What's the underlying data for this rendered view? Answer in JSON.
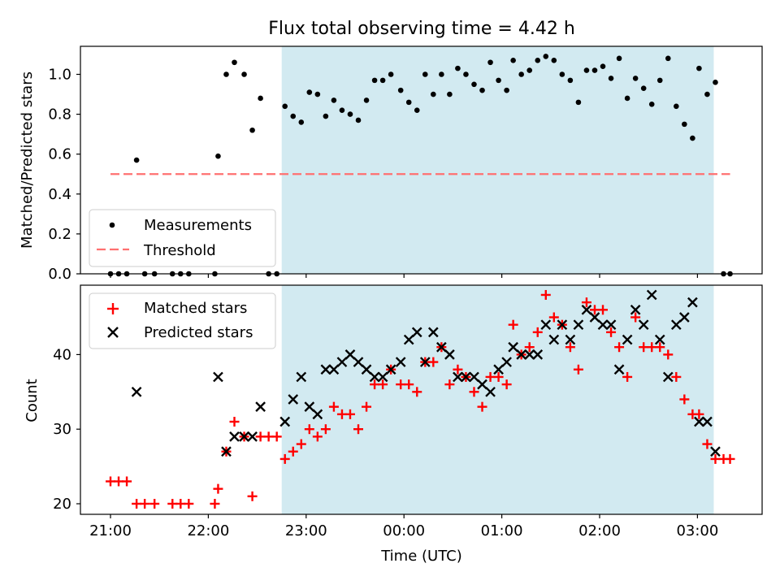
{
  "title": "Flux total observing time = 4.42 h",
  "xlabel": "Time (UTC)",
  "x_ticks": [
    "21:00",
    "22:00",
    "23:00",
    "00:00",
    "01:00",
    "02:00",
    "03:00"
  ],
  "shaded_interval": {
    "start": "22:45",
    "end": "03:10",
    "color": "#add8e6"
  },
  "chart_data": [
    {
      "type": "scatter",
      "panel": "top",
      "ylabel": "Matched/Predicted stars",
      "ylim": [
        0,
        1.14
      ],
      "y_ticks": [
        "0.0",
        "0.2",
        "0.4",
        "0.6",
        "0.8",
        "1.0"
      ],
      "legend_position": "lower-left",
      "threshold": {
        "name": "Threshold",
        "value": 0.5,
        "x_range": [
          "21:00",
          "03:20"
        ],
        "color": "#ff7070",
        "style": "dashed"
      },
      "series": [
        {
          "name": "Measurements",
          "color": "#000000",
          "marker": "dot",
          "points": [
            [
              "21:00",
              0
            ],
            [
              "21:05",
              0
            ],
            [
              "21:10",
              0
            ],
            [
              "21:16",
              0.57
            ],
            [
              "21:21",
              0
            ],
            [
              "21:27",
              0
            ],
            [
              "21:38",
              0
            ],
            [
              "21:43",
              0
            ],
            [
              "21:48",
              0
            ],
            [
              "22:04",
              0
            ],
            [
              "22:06",
              0.59
            ],
            [
              "22:11",
              1.0
            ],
            [
              "22:16",
              1.06
            ],
            [
              "22:22",
              1.0
            ],
            [
              "22:27",
              0.72
            ],
            [
              "22:32",
              0.88
            ],
            [
              "22:37",
              0
            ],
            [
              "22:42",
              0
            ],
            [
              "22:47",
              0.84
            ],
            [
              "22:52",
              0.79
            ],
            [
              "22:57",
              0.76
            ],
            [
              "23:02",
              0.91
            ],
            [
              "23:07",
              0.9
            ],
            [
              "23:12",
              0.79
            ],
            [
              "23:17",
              0.87
            ],
            [
              "23:22",
              0.82
            ],
            [
              "23:27",
              0.8
            ],
            [
              "23:32",
              0.77
            ],
            [
              "23:37",
              0.87
            ],
            [
              "23:42",
              0.97
            ],
            [
              "23:47",
              0.97
            ],
            [
              "23:52",
              1.0
            ],
            [
              "23:58",
              0.92
            ],
            [
              "00:03",
              0.86
            ],
            [
              "00:08",
              0.82
            ],
            [
              "00:13",
              1.0
            ],
            [
              "00:18",
              0.9
            ],
            [
              "00:23",
              1.0
            ],
            [
              "00:28",
              0.9
            ],
            [
              "00:33",
              1.03
            ],
            [
              "00:38",
              1.0
            ],
            [
              "00:43",
              0.95
            ],
            [
              "00:48",
              0.92
            ],
            [
              "00:53",
              1.06
            ],
            [
              "00:58",
              0.97
            ],
            [
              "01:03",
              0.92
            ],
            [
              "01:07",
              1.07
            ],
            [
              "01:12",
              1.0
            ],
            [
              "01:17",
              1.02
            ],
            [
              "01:22",
              1.07
            ],
            [
              "01:27",
              1.09
            ],
            [
              "01:32",
              1.07
            ],
            [
              "01:37",
              1.0
            ],
            [
              "01:42",
              0.97
            ],
            [
              "01:47",
              0.86
            ],
            [
              "01:52",
              1.02
            ],
            [
              "01:57",
              1.02
            ],
            [
              "02:02",
              1.04
            ],
            [
              "02:07",
              0.98
            ],
            [
              "02:12",
              1.08
            ],
            [
              "02:17",
              0.88
            ],
            [
              "02:22",
              0.98
            ],
            [
              "02:27",
              0.93
            ],
            [
              "02:32",
              0.85
            ],
            [
              "02:37",
              0.97
            ],
            [
              "02:42",
              1.08
            ],
            [
              "02:47",
              0.84
            ],
            [
              "02:52",
              0.75
            ],
            [
              "02:57",
              0.68
            ],
            [
              "03:01",
              1.03
            ],
            [
              "03:06",
              0.9
            ],
            [
              "03:11",
              0.96
            ],
            [
              "03:16",
              0
            ],
            [
              "03:20",
              0
            ]
          ]
        }
      ]
    },
    {
      "type": "scatter",
      "panel": "bottom",
      "ylabel": "Count",
      "ylim": [
        18.5,
        49.5
      ],
      "y_ticks": [
        "20",
        "30",
        "40"
      ],
      "legend_position": "upper-left",
      "series": [
        {
          "name": "Matched stars",
          "color": "#ff0000",
          "marker": "plus",
          "points": [
            [
              "21:00",
              23
            ],
            [
              "21:05",
              23
            ],
            [
              "21:10",
              23
            ],
            [
              "21:16",
              20
            ],
            [
              "21:21",
              20
            ],
            [
              "21:27",
              20
            ],
            [
              "21:38",
              20
            ],
            [
              "21:43",
              20
            ],
            [
              "21:48",
              20
            ],
            [
              "22:04",
              20
            ],
            [
              "22:06",
              22
            ],
            [
              "22:11",
              27
            ],
            [
              "22:16",
              31
            ],
            [
              "22:22",
              29
            ],
            [
              "22:27",
              21
            ],
            [
              "22:32",
              29
            ],
            [
              "22:37",
              29
            ],
            [
              "22:42",
              29
            ],
            [
              "22:47",
              26
            ],
            [
              "22:52",
              27
            ],
            [
              "22:57",
              28
            ],
            [
              "23:02",
              30
            ],
            [
              "23:07",
              29
            ],
            [
              "23:12",
              30
            ],
            [
              "23:17",
              33
            ],
            [
              "23:22",
              32
            ],
            [
              "23:27",
              32
            ],
            [
              "23:32",
              30
            ],
            [
              "23:37",
              33
            ],
            [
              "23:42",
              36
            ],
            [
              "23:47",
              36
            ],
            [
              "23:52",
              38
            ],
            [
              "23:58",
              36
            ],
            [
              "00:03",
              36
            ],
            [
              "00:08",
              35
            ],
            [
              "00:13",
              39
            ],
            [
              "00:18",
              39
            ],
            [
              "00:23",
              41
            ],
            [
              "00:28",
              36
            ],
            [
              "00:33",
              38
            ],
            [
              "00:38",
              37
            ],
            [
              "00:43",
              35
            ],
            [
              "00:48",
              33
            ],
            [
              "00:53",
              37
            ],
            [
              "00:58",
              37
            ],
            [
              "01:03",
              36
            ],
            [
              "01:07",
              44
            ],
            [
              "01:12",
              40
            ],
            [
              "01:17",
              41
            ],
            [
              "01:22",
              43
            ],
            [
              "01:27",
              48
            ],
            [
              "01:32",
              45
            ],
            [
              "01:37",
              44
            ],
            [
              "01:42",
              41
            ],
            [
              "01:47",
              38
            ],
            [
              "01:52",
              47
            ],
            [
              "01:57",
              46
            ],
            [
              "02:02",
              46
            ],
            [
              "02:07",
              43
            ],
            [
              "02:12",
              41
            ],
            [
              "02:17",
              37
            ],
            [
              "02:22",
              45
            ],
            [
              "02:27",
              41
            ],
            [
              "02:32",
              41
            ],
            [
              "02:37",
              41
            ],
            [
              "02:42",
              40
            ],
            [
              "02:47",
              37
            ],
            [
              "02:52",
              34
            ],
            [
              "02:57",
              32
            ],
            [
              "03:01",
              32
            ],
            [
              "03:06",
              28
            ],
            [
              "03:11",
              26
            ],
            [
              "03:16",
              26
            ],
            [
              "03:20",
              26
            ]
          ]
        },
        {
          "name": "Predicted stars",
          "color": "#000000",
          "marker": "x",
          "points": [
            [
              "21:16",
              35
            ],
            [
              "22:06",
              37
            ],
            [
              "22:11",
              27
            ],
            [
              "22:16",
              29
            ],
            [
              "22:22",
              29
            ],
            [
              "22:27",
              29
            ],
            [
              "22:32",
              33
            ],
            [
              "22:47",
              31
            ],
            [
              "22:52",
              34
            ],
            [
              "22:57",
              37
            ],
            [
              "23:02",
              33
            ],
            [
              "23:07",
              32
            ],
            [
              "23:12",
              38
            ],
            [
              "23:17",
              38
            ],
            [
              "23:22",
              39
            ],
            [
              "23:27",
              40
            ],
            [
              "23:32",
              39
            ],
            [
              "23:37",
              38
            ],
            [
              "23:42",
              37
            ],
            [
              "23:47",
              37
            ],
            [
              "23:52",
              38
            ],
            [
              "23:58",
              39
            ],
            [
              "00:03",
              42
            ],
            [
              "00:08",
              43
            ],
            [
              "00:13",
              39
            ],
            [
              "00:18",
              43
            ],
            [
              "00:23",
              41
            ],
            [
              "00:28",
              40
            ],
            [
              "00:33",
              37
            ],
            [
              "00:38",
              37
            ],
            [
              "00:43",
              37
            ],
            [
              "00:48",
              36
            ],
            [
              "00:53",
              35
            ],
            [
              "00:58",
              38
            ],
            [
              "01:03",
              39
            ],
            [
              "01:07",
              41
            ],
            [
              "01:12",
              40
            ],
            [
              "01:17",
              40
            ],
            [
              "01:22",
              40
            ],
            [
              "01:27",
              44
            ],
            [
              "01:32",
              42
            ],
            [
              "01:37",
              44
            ],
            [
              "01:42",
              42
            ],
            [
              "01:47",
              44
            ],
            [
              "01:52",
              46
            ],
            [
              "01:57",
              45
            ],
            [
              "02:02",
              44
            ],
            [
              "02:07",
              44
            ],
            [
              "02:12",
              38
            ],
            [
              "02:17",
              42
            ],
            [
              "02:22",
              46
            ],
            [
              "02:27",
              44
            ],
            [
              "02:32",
              48
            ],
            [
              "02:37",
              42
            ],
            [
              "02:42",
              37
            ],
            [
              "02:47",
              44
            ],
            [
              "02:52",
              45
            ],
            [
              "02:57",
              47
            ],
            [
              "03:01",
              31
            ],
            [
              "03:06",
              31
            ],
            [
              "03:11",
              27
            ]
          ]
        }
      ]
    }
  ]
}
